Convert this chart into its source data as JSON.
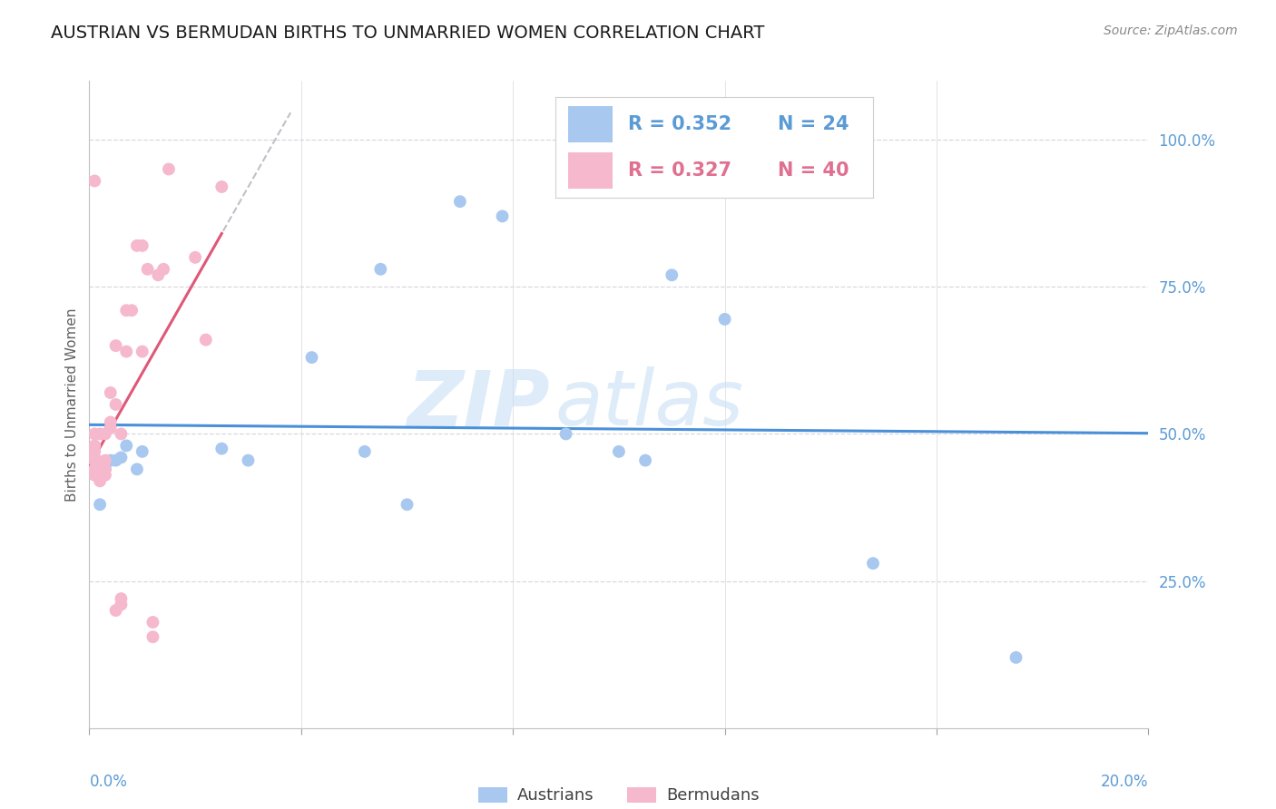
{
  "title": "AUSTRIAN VS BERMUDAN BIRTHS TO UNMARRIED WOMEN CORRELATION CHART",
  "source": "Source: ZipAtlas.com",
  "ylabel": "Births to Unmarried Women",
  "ytick_labels": [
    "100.0%",
    "75.0%",
    "50.0%",
    "25.0%"
  ],
  "ytick_values": [
    1.0,
    0.75,
    0.5,
    0.25
  ],
  "xlim": [
    0.0,
    0.2
  ],
  "ylim": [
    0.0,
    1.1
  ],
  "watermark_zip": "ZIP",
  "watermark_atlas": "atlas",
  "legend_blue_R": "R = 0.352",
  "legend_blue_N": "N = 24",
  "legend_pink_R": "R = 0.327",
  "legend_pink_N": "N = 40",
  "blue_scatter_color": "#a8c8f0",
  "pink_scatter_color": "#f5b8cc",
  "trendline_blue_color": "#4a90d9",
  "trendline_pink_color": "#e05878",
  "trendline_dashed_color": "#c0c0c8",
  "austrians_x": [
    0.001,
    0.002,
    0.003,
    0.004,
    0.005,
    0.006,
    0.007,
    0.009,
    0.01,
    0.025,
    0.03,
    0.042,
    0.055,
    0.07,
    0.078,
    0.09,
    0.1,
    0.105,
    0.11,
    0.12,
    0.148,
    0.175,
    0.06,
    0.052
  ],
  "austrians_y": [
    0.455,
    0.38,
    0.44,
    0.455,
    0.455,
    0.46,
    0.48,
    0.44,
    0.47,
    0.475,
    0.455,
    0.63,
    0.78,
    0.895,
    0.87,
    0.5,
    0.47,
    0.455,
    0.77,
    0.695,
    0.28,
    0.12,
    0.38,
    0.47
  ],
  "bermudans_x": [
    0.001,
    0.001,
    0.001,
    0.001,
    0.001,
    0.001,
    0.001,
    0.002,
    0.002,
    0.002,
    0.002,
    0.003,
    0.003,
    0.003,
    0.003,
    0.004,
    0.004,
    0.004,
    0.005,
    0.005,
    0.005,
    0.006,
    0.006,
    0.006,
    0.007,
    0.007,
    0.008,
    0.009,
    0.01,
    0.01,
    0.011,
    0.012,
    0.012,
    0.013,
    0.014,
    0.015,
    0.02,
    0.022,
    0.025,
    0.001
  ],
  "bermudans_y": [
    0.455,
    0.46,
    0.47,
    0.48,
    0.44,
    0.43,
    0.5,
    0.45,
    0.43,
    0.42,
    0.5,
    0.44,
    0.43,
    0.455,
    0.5,
    0.52,
    0.57,
    0.51,
    0.55,
    0.65,
    0.2,
    0.21,
    0.22,
    0.5,
    0.64,
    0.71,
    0.71,
    0.82,
    0.64,
    0.82,
    0.78,
    0.155,
    0.18,
    0.77,
    0.78,
    0.95,
    0.8,
    0.66,
    0.92,
    0.93
  ],
  "title_fontsize": 14,
  "source_fontsize": 10,
  "axis_label_fontsize": 11,
  "tick_fontsize": 12,
  "legend_fontsize": 15,
  "grid_color": "#d8d8e0",
  "background_color": "#ffffff",
  "axis_color": "#5b9bd5",
  "text_color": "#606060"
}
